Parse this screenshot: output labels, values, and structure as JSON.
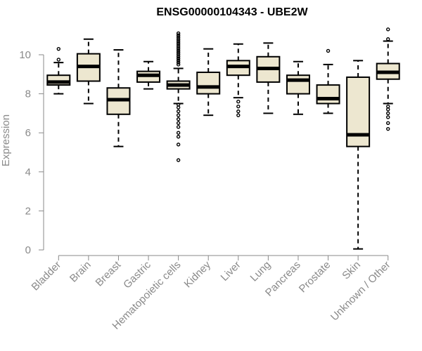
{
  "chart_data": {
    "type": "boxplot",
    "title": "ENSG00000104343 - UBE2W",
    "xlabel": "",
    "ylabel": "Expression",
    "ylim": [
      0,
      11.5
    ],
    "yticks": [
      0,
      2,
      4,
      6,
      8,
      10
    ],
    "grid": false,
    "box_fill": "#ede7d0",
    "categories": [
      "Bladder",
      "Brain",
      "Breast",
      "Gastric",
      "Hematopoietic cells",
      "Kidney",
      "Liver",
      "Lung",
      "Pancreas",
      "Prostate",
      "Skin",
      "Unknown / Other"
    ],
    "boxes": [
      {
        "min": 8.0,
        "q1": 8.45,
        "median": 8.6,
        "q3": 8.95,
        "max": 9.6,
        "outliers": [
          9.75,
          10.3
        ]
      },
      {
        "min": 7.5,
        "q1": 8.65,
        "median": 9.4,
        "q3": 10.05,
        "max": 10.8,
        "outliers": []
      },
      {
        "min": 5.3,
        "q1": 6.95,
        "median": 7.7,
        "q3": 8.3,
        "max": 10.25,
        "outliers": []
      },
      {
        "min": 8.25,
        "q1": 8.6,
        "median": 8.95,
        "q3": 9.15,
        "max": 9.65,
        "outliers": []
      },
      {
        "min": 7.5,
        "q1": 8.25,
        "median": 8.45,
        "q3": 8.65,
        "max": 9.3,
        "outliers": [
          4.6,
          5.4,
          5.8,
          6.0,
          6.3,
          6.5,
          6.7,
          6.9,
          7.1,
          7.3,
          7.45,
          9.5,
          9.6,
          9.7,
          9.8,
          9.9,
          10.0,
          10.1,
          10.2,
          10.3,
          10.4,
          10.5,
          10.6,
          10.7,
          10.8,
          10.9,
          11.0,
          11.1
        ]
      },
      {
        "min": 6.9,
        "q1": 8.0,
        "median": 8.35,
        "q3": 9.1,
        "max": 10.3,
        "outliers": []
      },
      {
        "min": 7.8,
        "q1": 8.95,
        "median": 9.4,
        "q3": 9.7,
        "max": 10.55,
        "outliers": [
          6.9,
          7.1,
          7.35,
          7.6
        ]
      },
      {
        "min": 7.0,
        "q1": 8.6,
        "median": 9.3,
        "q3": 9.9,
        "max": 10.6,
        "outliers": []
      },
      {
        "min": 6.95,
        "q1": 8.0,
        "median": 8.7,
        "q3": 8.95,
        "max": 9.65,
        "outliers": []
      },
      {
        "min": 7.0,
        "q1": 7.5,
        "median": 7.75,
        "q3": 8.45,
        "max": 9.5,
        "outliers": [
          10.2
        ]
      },
      {
        "min": 0.05,
        "q1": 5.3,
        "median": 5.9,
        "q3": 8.85,
        "max": 9.7,
        "outliers": []
      },
      {
        "min": 7.5,
        "q1": 8.75,
        "median": 9.1,
        "q3": 9.55,
        "max": 10.7,
        "outliers": [
          6.2,
          6.5,
          6.8,
          7.0,
          7.2,
          7.35,
          10.8,
          11.3
        ]
      }
    ]
  }
}
